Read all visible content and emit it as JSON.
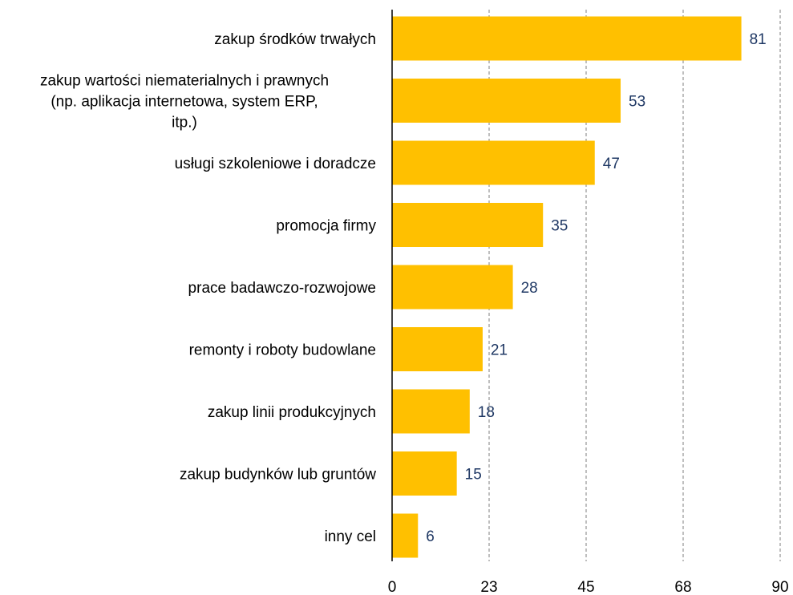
{
  "chart_data": {
    "type": "bar",
    "orientation": "horizontal",
    "title": "",
    "xlabel": "",
    "ylabel": "",
    "categories": [
      [
        "zakup środków trwałych"
      ],
      [
        "zakup wartości niematerialnych i prawnych",
        "(np. aplikacja internetowa, system ERP,",
        "itp.)"
      ],
      [
        "usługi szkoleniowe i doradcze"
      ],
      [
        "promocja firmy"
      ],
      [
        "prace badawczo-rozwojowe"
      ],
      [
        "remonty i roboty budowlane"
      ],
      [
        "zakup linii produkcyjnych"
      ],
      [
        "zakup budynków lub gruntów"
      ],
      [
        "inny cel"
      ]
    ],
    "values": [
      81,
      53,
      47,
      35,
      28,
      21,
      18,
      15,
      6
    ],
    "value_labels": [
      "81",
      "53",
      "47",
      "35",
      "28",
      "21",
      "18",
      "15",
      "6"
    ],
    "xlim": [
      0,
      90
    ],
    "x_ticks": [
      0,
      22.5,
      45,
      67.5,
      90
    ],
    "x_tick_labels": [
      "0",
      "23",
      "45",
      "68",
      "90"
    ],
    "grid": "vertical dashed",
    "legend": "none",
    "colors": {
      "bar": "#FFC000",
      "value_label": "#1F3864",
      "grid": "#7F7F7F",
      "axis": "#000000"
    }
  }
}
